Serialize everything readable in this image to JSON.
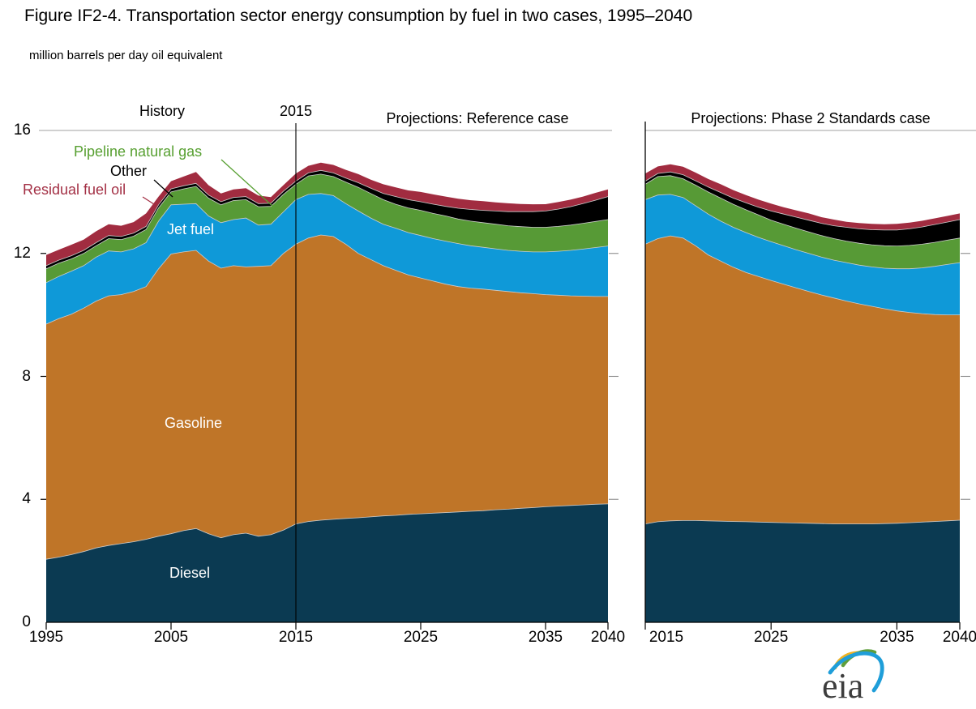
{
  "figure": {
    "title": "Figure IF2-4. Transportation sector energy consumption by fuel in two cases, 1995–2040",
    "subtitle": "million barrels per day oil equivalent"
  },
  "header": {
    "history_label": "History",
    "divider_year_label": "2015",
    "left_panel_title": "Projections: Reference case",
    "right_panel_title": "Projections: Phase 2 Standards case"
  },
  "series_labels": {
    "pipeline_natural_gas": {
      "text": "Pipeline natural gas",
      "color": "#58a032"
    },
    "other": {
      "text": "Other",
      "color": "#000000"
    },
    "residual_fuel_oil": {
      "text": "Residual fuel oil",
      "color": "#a33045"
    },
    "jet_fuel": {
      "text": "Jet fuel",
      "color": "#ffffff"
    },
    "gasoline": {
      "text": "Gasoline",
      "color": "#ffffff"
    },
    "diesel": {
      "text": "Diesel",
      "color": "#ffffff"
    }
  },
  "axes": {
    "y_tick_labels": [
      "16",
      "12",
      "8",
      "4",
      "0"
    ],
    "left_x_tick_labels": [
      "1995",
      "2005",
      "2015",
      "2025",
      "2035",
      "2040"
    ],
    "right_x_tick_labels": [
      "2015",
      "2025",
      "2035",
      "2040"
    ]
  },
  "logo": {
    "text": "eia"
  },
  "style": {
    "gridline_color": "#b3b3b3",
    "right_tick_color": "#8c8c8c",
    "axis_color": "#000000",
    "band_edge_color": "#cccccc"
  },
  "chart_data": {
    "type": "area",
    "stacked": true,
    "title": "Transportation sector energy consumption by fuel in two cases, 1995–2040",
    "ylabel": "million barrels per day oil equivalent",
    "ylim": [
      0,
      16
    ],
    "y_ticks": [
      0,
      4,
      8,
      12,
      16
    ],
    "history_end_year": 2015,
    "series_order_bottom_to_top": [
      "Diesel",
      "Gasoline",
      "Jet fuel",
      "Pipeline natural gas",
      "Other",
      "Residual fuel oil"
    ],
    "panels": [
      {
        "id": "reference",
        "title": "Projections: Reference case",
        "x_ticks": [
          1995,
          2005,
          2015,
          2025,
          2035,
          2040
        ],
        "years": [
          1995,
          1996,
          1997,
          1998,
          1999,
          2000,
          2001,
          2002,
          2003,
          2004,
          2005,
          2006,
          2007,
          2008,
          2009,
          2010,
          2011,
          2012,
          2013,
          2014,
          2015,
          2016,
          2017,
          2018,
          2019,
          2020,
          2021,
          2022,
          2023,
          2024,
          2025,
          2026,
          2027,
          2028,
          2029,
          2030,
          2031,
          2032,
          2033,
          2034,
          2035,
          2036,
          2037,
          2038,
          2039,
          2040
        ],
        "series": [
          {
            "name": "Diesel",
            "color": "#0b3a52",
            "values": [
              2.05,
              2.12,
              2.2,
              2.3,
              2.42,
              2.5,
              2.56,
              2.62,
              2.7,
              2.8,
              2.88,
              2.98,
              3.05,
              2.88,
              2.75,
              2.85,
              2.9,
              2.8,
              2.85,
              3.0,
              3.2,
              3.28,
              3.32,
              3.35,
              3.38,
              3.4,
              3.43,
              3.46,
              3.48,
              3.51,
              3.53,
              3.55,
              3.57,
              3.59,
              3.61,
              3.63,
              3.66,
              3.68,
              3.71,
              3.73,
              3.76,
              3.78,
              3.8,
              3.82,
              3.84,
              3.85
            ]
          },
          {
            "name": "Gasoline",
            "color": "#bf7528",
            "values": [
              7.65,
              7.76,
              7.82,
              7.92,
              8.03,
              8.12,
              8.1,
              8.14,
              8.22,
              8.7,
              9.1,
              9.07,
              9.05,
              8.87,
              8.77,
              8.75,
              8.66,
              8.78,
              8.75,
              9.0,
              9.1,
              9.22,
              9.28,
              9.2,
              8.92,
              8.6,
              8.37,
              8.14,
              7.97,
              7.79,
              7.67,
              7.55,
              7.43,
              7.33,
              7.26,
              7.21,
              7.14,
              7.08,
              7.01,
              6.96,
              6.9,
              6.86,
              6.82,
              6.79,
              6.76,
              6.75
            ]
          },
          {
            "name": "Jet fuel",
            "color": "#0f99d8",
            "values": [
              1.35,
              1.37,
              1.4,
              1.38,
              1.43,
              1.46,
              1.39,
              1.39,
              1.43,
              1.55,
              1.6,
              1.55,
              1.52,
              1.47,
              1.48,
              1.5,
              1.59,
              1.34,
              1.35,
              1.35,
              1.45,
              1.42,
              1.35,
              1.33,
              1.32,
              1.38,
              1.35,
              1.35,
              1.37,
              1.38,
              1.38,
              1.38,
              1.4,
              1.4,
              1.38,
              1.36,
              1.35,
              1.34,
              1.35,
              1.36,
              1.39,
              1.43,
              1.48,
              1.53,
              1.59,
              1.64
            ]
          },
          {
            "name": "Pipeline natural gas",
            "color": "#579a36",
            "values": [
              0.45,
              0.43,
              0.4,
              0.4,
              0.37,
              0.4,
              0.4,
              0.41,
              0.43,
              0.43,
              0.42,
              0.5,
              0.56,
              0.58,
              0.58,
              0.62,
              0.6,
              0.6,
              0.58,
              0.57,
              0.5,
              0.6,
              0.63,
              0.62,
              0.7,
              0.77,
              0.8,
              0.8,
              0.78,
              0.8,
              0.82,
              0.82,
              0.82,
              0.8,
              0.8,
              0.8,
              0.8,
              0.8,
              0.8,
              0.8,
              0.8,
              0.81,
              0.82,
              0.84,
              0.85,
              0.86
            ]
          },
          {
            "name": "Other",
            "color": "#000000",
            "values": [
              0.1,
              0.1,
              0.1,
              0.1,
              0.1,
              0.1,
              0.1,
              0.1,
              0.1,
              0.1,
              0.1,
              0.1,
              0.1,
              0.1,
              0.1,
              0.1,
              0.1,
              0.1,
              0.1,
              0.1,
              0.1,
              0.1,
              0.12,
              0.12,
              0.13,
              0.15,
              0.17,
              0.2,
              0.25,
              0.27,
              0.28,
              0.3,
              0.31,
              0.35,
              0.38,
              0.4,
              0.43,
              0.46,
              0.49,
              0.51,
              0.53,
              0.56,
              0.6,
              0.64,
              0.69,
              0.75
            ]
          },
          {
            "name": "Residual fuel oil",
            "color": "#a12c40",
            "values": [
              0.35,
              0.34,
              0.36,
              0.35,
              0.37,
              0.37,
              0.35,
              0.36,
              0.42,
              0.27,
              0.25,
              0.3,
              0.37,
              0.32,
              0.27,
              0.26,
              0.27,
              0.26,
              0.2,
              0.2,
              0.25,
              0.23,
              0.25,
              0.26,
              0.27,
              0.28,
              0.28,
              0.3,
              0.3,
              0.3,
              0.32,
              0.32,
              0.32,
              0.31,
              0.3,
              0.3,
              0.28,
              0.27,
              0.25,
              0.24,
              0.22,
              0.23,
              0.23,
              0.23,
              0.24,
              0.23
            ]
          }
        ]
      },
      {
        "id": "phase2",
        "title": "Projections: Phase 2 Standards case",
        "x_ticks": [
          2015,
          2025,
          2035,
          2040
        ],
        "years": [
          2015,
          2016,
          2017,
          2018,
          2019,
          2020,
          2021,
          2022,
          2023,
          2024,
          2025,
          2026,
          2027,
          2028,
          2029,
          2030,
          2031,
          2032,
          2033,
          2034,
          2035,
          2036,
          2037,
          2038,
          2039,
          2040
        ],
        "series": [
          {
            "name": "Diesel",
            "color": "#0b3a52",
            "values": [
              3.2,
              3.27,
              3.3,
              3.31,
              3.31,
              3.3,
              3.29,
              3.28,
              3.27,
              3.26,
              3.25,
              3.24,
              3.23,
              3.22,
              3.21,
              3.2,
              3.2,
              3.2,
              3.2,
              3.21,
              3.22,
              3.24,
              3.26,
              3.28,
              3.3,
              3.32
            ]
          },
          {
            "name": "Gasoline",
            "color": "#bf7528",
            "values": [
              9.1,
              9.21,
              9.27,
              9.19,
              8.94,
              8.65,
              8.46,
              8.27,
              8.11,
              7.99,
              7.87,
              7.76,
              7.65,
              7.54,
              7.44,
              7.35,
              7.25,
              7.16,
              7.08,
              6.99,
              6.91,
              6.84,
              6.78,
              6.73,
              6.7,
              6.68
            ]
          },
          {
            "name": "Jet fuel",
            "color": "#0f99d8",
            "values": [
              1.45,
              1.42,
              1.35,
              1.32,
              1.3,
              1.33,
              1.3,
              1.3,
              1.3,
              1.27,
              1.26,
              1.25,
              1.24,
              1.24,
              1.23,
              1.23,
              1.25,
              1.26,
              1.28,
              1.32,
              1.37,
              1.42,
              1.49,
              1.57,
              1.64,
              1.7
            ]
          },
          {
            "name": "Pipeline natural gas",
            "color": "#579a36",
            "values": [
              0.5,
              0.6,
              0.61,
              0.61,
              0.67,
              0.72,
              0.75,
              0.75,
              0.74,
              0.73,
              0.7,
              0.7,
              0.7,
              0.7,
              0.7,
              0.7,
              0.7,
              0.71,
              0.72,
              0.73,
              0.74,
              0.76,
              0.77,
              0.78,
              0.79,
              0.8
            ]
          },
          {
            "name": "Other",
            "color": "#000000",
            "values": [
              0.1,
              0.1,
              0.12,
              0.13,
              0.14,
              0.16,
              0.18,
              0.2,
              0.23,
              0.25,
              0.3,
              0.33,
              0.36,
              0.38,
              0.4,
              0.42,
              0.45,
              0.47,
              0.49,
              0.51,
              0.52,
              0.54,
              0.56,
              0.58,
              0.59,
              0.6
            ]
          },
          {
            "name": "Residual fuel oil",
            "color": "#a12c40",
            "values": [
              0.25,
              0.23,
              0.25,
              0.26,
              0.27,
              0.26,
              0.27,
              0.26,
              0.25,
              0.25,
              0.24,
              0.22,
              0.22,
              0.22,
              0.2,
              0.2,
              0.18,
              0.19,
              0.19,
              0.19,
              0.2,
              0.2,
              0.2,
              0.2,
              0.2,
              0.2
            ]
          }
        ]
      }
    ]
  }
}
